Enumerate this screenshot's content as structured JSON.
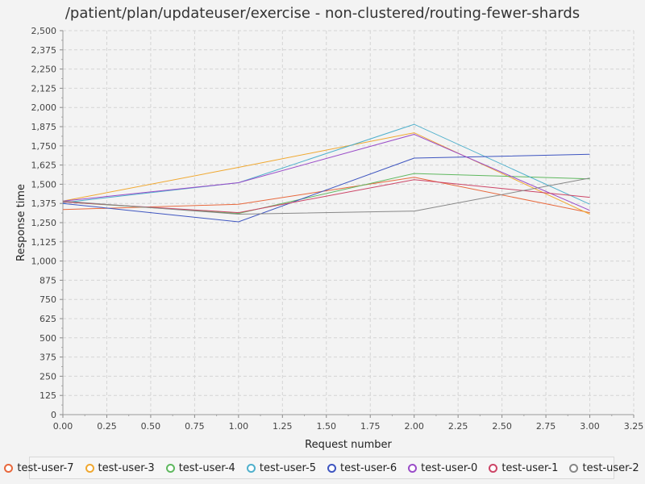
{
  "chart_data": {
    "type": "line",
    "title": "/patient/plan/updateuser/exercise - non-clustered/routing-fewer-shards",
    "xlabel": "Request number",
    "ylabel": "Response time",
    "xlim": [
      0,
      3.25
    ],
    "ylim": [
      0,
      2500
    ],
    "xticks": [
      "0.00",
      "0.25",
      "0.50",
      "0.75",
      "1.00",
      "1.25",
      "1.50",
      "1.75",
      "2.00",
      "2.25",
      "2.50",
      "2.75",
      "3.00",
      "3.25"
    ],
    "yticks": [
      "0",
      "125",
      "250",
      "375",
      "500",
      "625",
      "750",
      "875",
      "1,000",
      "1,125",
      "1,250",
      "1,375",
      "1,500",
      "1,625",
      "1,750",
      "1,875",
      "2,000",
      "2,125",
      "2,250",
      "2,375",
      "2,500"
    ],
    "grid": true,
    "legend_position": "bottom",
    "x": [
      0,
      1,
      2,
      3
    ],
    "series": [
      {
        "name": "test-user-7",
        "color": "#e8683c",
        "values": [
          1335,
          1370,
          1545,
          1315
        ]
      },
      {
        "name": "test-user-3",
        "color": "#f0a830",
        "values": [
          1390,
          1610,
          1835,
          1305
        ]
      },
      {
        "name": "test-user-4",
        "color": "#5fb85f",
        "values": [
          1385,
          1310,
          1570,
          1535
        ]
      },
      {
        "name": "test-user-5",
        "color": "#4fb0cc",
        "values": [
          1380,
          1510,
          1890,
          1370
        ]
      },
      {
        "name": "test-user-6",
        "color": "#3e55c0",
        "values": [
          1375,
          1255,
          1670,
          1695
        ]
      },
      {
        "name": "test-user-0",
        "color": "#9a4cc8",
        "values": [
          1390,
          1510,
          1825,
          1330
        ]
      },
      {
        "name": "test-user-1",
        "color": "#cc4466",
        "values": [
          1385,
          1315,
          1530,
          1415
        ]
      },
      {
        "name": "test-user-2",
        "color": "#888888",
        "values": [
          1390,
          1305,
          1325,
          1540
        ]
      }
    ]
  }
}
